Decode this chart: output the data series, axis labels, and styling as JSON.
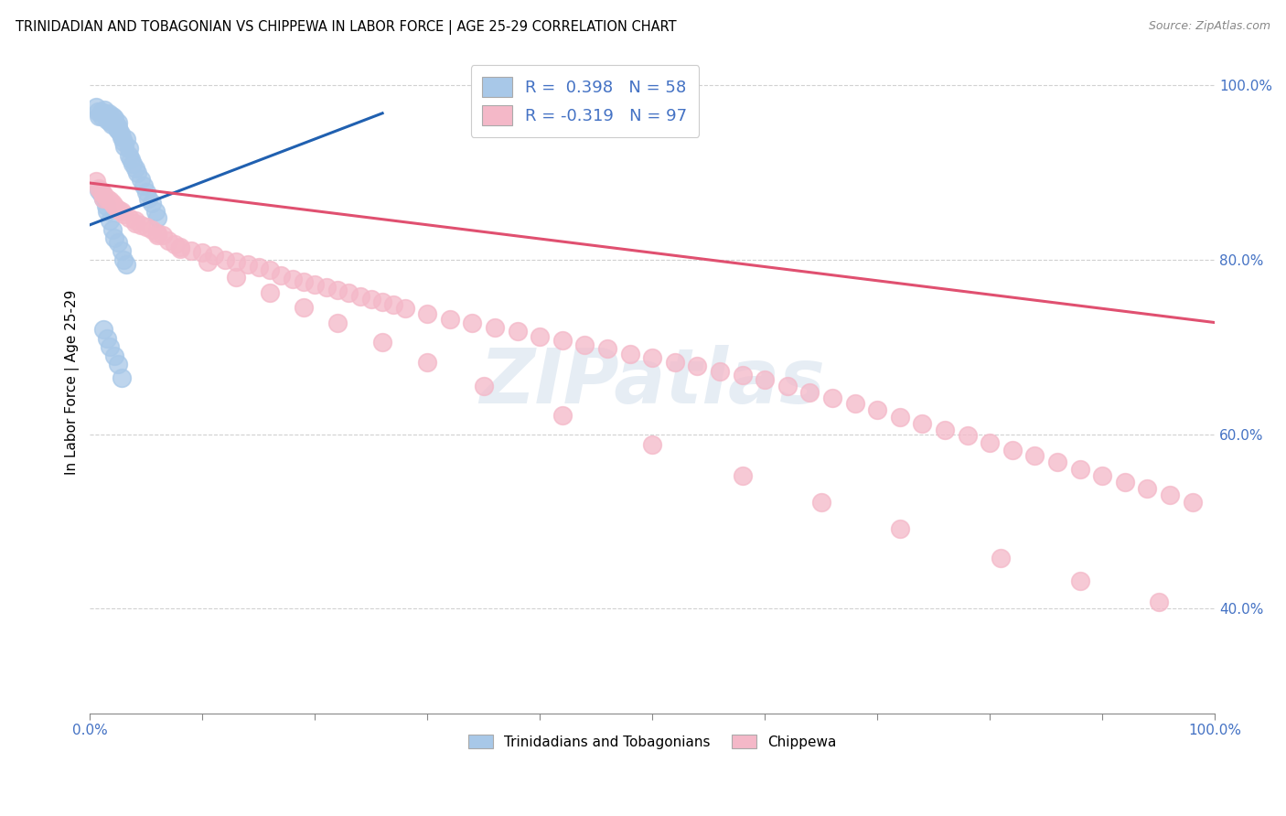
{
  "title": "TRINIDADIAN AND TOBAGONIAN VS CHIPPEWA IN LABOR FORCE | AGE 25-29 CORRELATION CHART",
  "source": "Source: ZipAtlas.com",
  "ylabel": "In Labor Force | Age 25-29",
  "x_min": 0.0,
  "x_max": 1.0,
  "y_min": 0.28,
  "y_max": 1.04,
  "blue_R": 0.398,
  "blue_N": 58,
  "pink_R": -0.319,
  "pink_N": 97,
  "blue_color": "#a8c8e8",
  "pink_color": "#f4b8c8",
  "blue_edge_color": "#7090c0",
  "pink_edge_color": "#e090a0",
  "blue_line_color": "#2060b0",
  "pink_line_color": "#e05070",
  "legend_label_blue": "Trinidadians and Tobagonians",
  "legend_label_pink": "Chippewa",
  "watermark": "ZIPatlas",
  "blue_x": [
    0.005,
    0.007,
    0.008,
    0.01,
    0.01,
    0.012,
    0.013,
    0.015,
    0.015,
    0.017,
    0.018,
    0.018,
    0.019,
    0.02,
    0.02,
    0.021,
    0.022,
    0.023,
    0.024,
    0.025,
    0.025,
    0.026,
    0.027,
    0.028,
    0.03,
    0.031,
    0.032,
    0.035,
    0.035,
    0.036,
    0.038,
    0.04,
    0.042,
    0.045,
    0.048,
    0.05,
    0.052,
    0.055,
    0.058,
    0.06,
    0.008,
    0.01,
    0.012,
    0.014,
    0.015,
    0.018,
    0.02,
    0.022,
    0.025,
    0.028,
    0.03,
    0.032,
    0.012,
    0.015,
    0.018,
    0.022,
    0.025,
    0.028
  ],
  "blue_y": [
    0.975,
    0.97,
    0.965,
    0.965,
    0.97,
    0.968,
    0.972,
    0.966,
    0.96,
    0.968,
    0.963,
    0.958,
    0.955,
    0.96,
    0.965,
    0.958,
    0.962,
    0.955,
    0.95,
    0.957,
    0.952,
    0.948,
    0.945,
    0.94,
    0.935,
    0.93,
    0.938,
    0.928,
    0.92,
    0.915,
    0.91,
    0.905,
    0.9,
    0.892,
    0.885,
    0.878,
    0.87,
    0.865,
    0.855,
    0.848,
    0.88,
    0.875,
    0.87,
    0.862,
    0.855,
    0.845,
    0.835,
    0.825,
    0.82,
    0.81,
    0.8,
    0.795,
    0.72,
    0.71,
    0.7,
    0.69,
    0.68,
    0.665
  ],
  "pink_x": [
    0.005,
    0.008,
    0.01,
    0.012,
    0.015,
    0.018,
    0.02,
    0.022,
    0.025,
    0.028,
    0.03,
    0.035,
    0.04,
    0.045,
    0.05,
    0.055,
    0.06,
    0.065,
    0.07,
    0.075,
    0.08,
    0.09,
    0.1,
    0.11,
    0.12,
    0.13,
    0.14,
    0.15,
    0.16,
    0.17,
    0.18,
    0.19,
    0.2,
    0.21,
    0.22,
    0.23,
    0.24,
    0.25,
    0.26,
    0.27,
    0.28,
    0.3,
    0.32,
    0.34,
    0.36,
    0.38,
    0.4,
    0.42,
    0.44,
    0.46,
    0.48,
    0.5,
    0.52,
    0.54,
    0.56,
    0.58,
    0.6,
    0.62,
    0.64,
    0.66,
    0.68,
    0.7,
    0.72,
    0.74,
    0.76,
    0.78,
    0.8,
    0.82,
    0.84,
    0.86,
    0.88,
    0.9,
    0.92,
    0.94,
    0.96,
    0.98,
    0.012,
    0.025,
    0.04,
    0.06,
    0.08,
    0.105,
    0.13,
    0.16,
    0.19,
    0.22,
    0.26,
    0.3,
    0.35,
    0.42,
    0.5,
    0.58,
    0.65,
    0.72,
    0.81,
    0.88,
    0.95
  ],
  "pink_y": [
    0.89,
    0.882,
    0.878,
    0.875,
    0.87,
    0.868,
    0.865,
    0.862,
    0.858,
    0.855,
    0.852,
    0.848,
    0.845,
    0.84,
    0.838,
    0.835,
    0.83,
    0.828,
    0.822,
    0.818,
    0.815,
    0.81,
    0.808,
    0.805,
    0.8,
    0.798,
    0.795,
    0.792,
    0.788,
    0.782,
    0.778,
    0.775,
    0.772,
    0.768,
    0.765,
    0.762,
    0.758,
    0.755,
    0.752,
    0.748,
    0.744,
    0.738,
    0.732,
    0.728,
    0.722,
    0.718,
    0.712,
    0.708,
    0.702,
    0.698,
    0.692,
    0.688,
    0.682,
    0.678,
    0.672,
    0.668,
    0.662,
    0.655,
    0.648,
    0.642,
    0.635,
    0.628,
    0.62,
    0.612,
    0.605,
    0.598,
    0.59,
    0.582,
    0.575,
    0.568,
    0.56,
    0.552,
    0.545,
    0.538,
    0.53,
    0.522,
    0.87,
    0.858,
    0.842,
    0.828,
    0.812,
    0.798,
    0.78,
    0.762,
    0.745,
    0.728,
    0.705,
    0.682,
    0.655,
    0.622,
    0.588,
    0.552,
    0.522,
    0.492,
    0.458,
    0.432,
    0.408
  ],
  "blue_line_x0": 0.0,
  "blue_line_x1": 0.26,
  "pink_line_x0": 0.0,
  "pink_line_x1": 1.0,
  "blue_line_y0": 0.84,
  "blue_line_y1": 0.968,
  "pink_line_y0": 0.888,
  "pink_line_y1": 0.728
}
